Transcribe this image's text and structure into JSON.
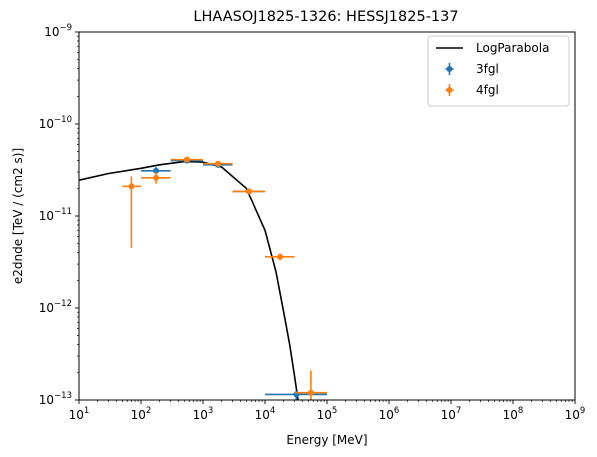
{
  "chart_data": {
    "type": "scatter",
    "title": "LHAASOJ1825-1326: HESSJ1825-137",
    "xlabel": "Energy [MeV]",
    "ylabel": "e2dnde [TeV / (cm2 s)]",
    "xscale": "log",
    "yscale": "log",
    "xlim": [
      10,
      1000000000
    ],
    "ylim": [
      1e-13,
      1e-09
    ],
    "x_ticks": [
      "10^1",
      "10^2",
      "10^3",
      "10^4",
      "10^5",
      "10^6",
      "10^7",
      "10^8",
      "10^9"
    ],
    "y_ticks": [
      "10^-13",
      "10^-12",
      "10^-11",
      "10^-10",
      "10^-9"
    ],
    "grid": false,
    "legend_position": "top-right",
    "colors": {
      "LogParabola": "#000000",
      "3fgl": "#1f77b4",
      "4fgl": "#ff7f0e"
    },
    "model": {
      "name": "LogParabola",
      "points": [
        {
          "x": 10,
          "y": 2.45e-11
        },
        {
          "x": 30,
          "y": 2.9e-11
        },
        {
          "x": 100,
          "y": 3.3e-11
        },
        {
          "x": 200,
          "y": 3.6e-11
        },
        {
          "x": 500,
          "y": 3.9e-11
        },
        {
          "x": 1000,
          "y": 3.85e-11
        },
        {
          "x": 2000,
          "y": 3.4e-11
        },
        {
          "x": 5000,
          "y": 2e-11
        },
        {
          "x": 10000,
          "y": 7e-12
        },
        {
          "x": 15000,
          "y": 2.5e-12
        },
        {
          "x": 20000,
          "y": 9e-13
        },
        {
          "x": 25000,
          "y": 4e-13
        },
        {
          "x": 30000,
          "y": 1.8e-13
        },
        {
          "x": 34000,
          "y": 1e-13
        }
      ]
    },
    "series": [
      {
        "name": "3fgl",
        "points": [
          {
            "x": 175,
            "y": 3.1e-11,
            "xerr": [
              100,
              300
            ],
            "yerr": [
              2.8e-11,
              3.4e-11
            ]
          },
          {
            "x": 550,
            "y": 4e-11,
            "xerr": [
              300,
              1000
            ],
            "yerr": [
              3.8e-11,
              4.2e-11
            ]
          },
          {
            "x": 1750,
            "y": 3.6e-11,
            "xerr": [
              1000,
              3000
            ],
            "yerr": [
              3.4e-11,
              3.8e-11
            ]
          },
          {
            "x": 5500,
            "y": 1.85e-11,
            "xerr": [
              3000,
              10000
            ],
            "yerr": [
              1.75e-11,
              1.95e-11
            ]
          },
          {
            "x": 32000,
            "y": 1.15e-13,
            "xerr": [
              10000,
              100000
            ],
            "yerr": [
              1e-13,
              1.25e-13
            ]
          }
        ]
      },
      {
        "name": "4fgl",
        "points": [
          {
            "x": 70,
            "y": 2.1e-11,
            "xerr": [
              50,
              100
            ],
            "yerr": [
              4.5e-12,
              2.7e-11
            ]
          },
          {
            "x": 175,
            "y": 2.6e-11,
            "xerr": [
              100,
              300
            ],
            "yerr": [
              2.25e-11,
              3e-11
            ]
          },
          {
            "x": 550,
            "y": 4.1e-11,
            "xerr": [
              300,
              1000
            ],
            "yerr": [
              3.9e-11,
              4.3e-11
            ]
          },
          {
            "x": 1750,
            "y": 3.7e-11,
            "xerr": [
              1000,
              3000
            ],
            "yerr": [
              3.5e-11,
              3.9e-11
            ]
          },
          {
            "x": 5500,
            "y": 1.85e-11,
            "xerr": [
              3000,
              10000
            ],
            "yerr": [
              1.75e-11,
              1.95e-11
            ]
          },
          {
            "x": 17500,
            "y": 3.6e-12,
            "xerr": [
              10000,
              30000
            ],
            "yerr": [
              3.3e-12,
              3.9e-12
            ]
          },
          {
            "x": 55000,
            "y": 1.2e-13,
            "xerr": [
              30000,
              100000
            ],
            "yerr": [
              1e-13,
              2.1e-13
            ]
          }
        ]
      }
    ]
  }
}
